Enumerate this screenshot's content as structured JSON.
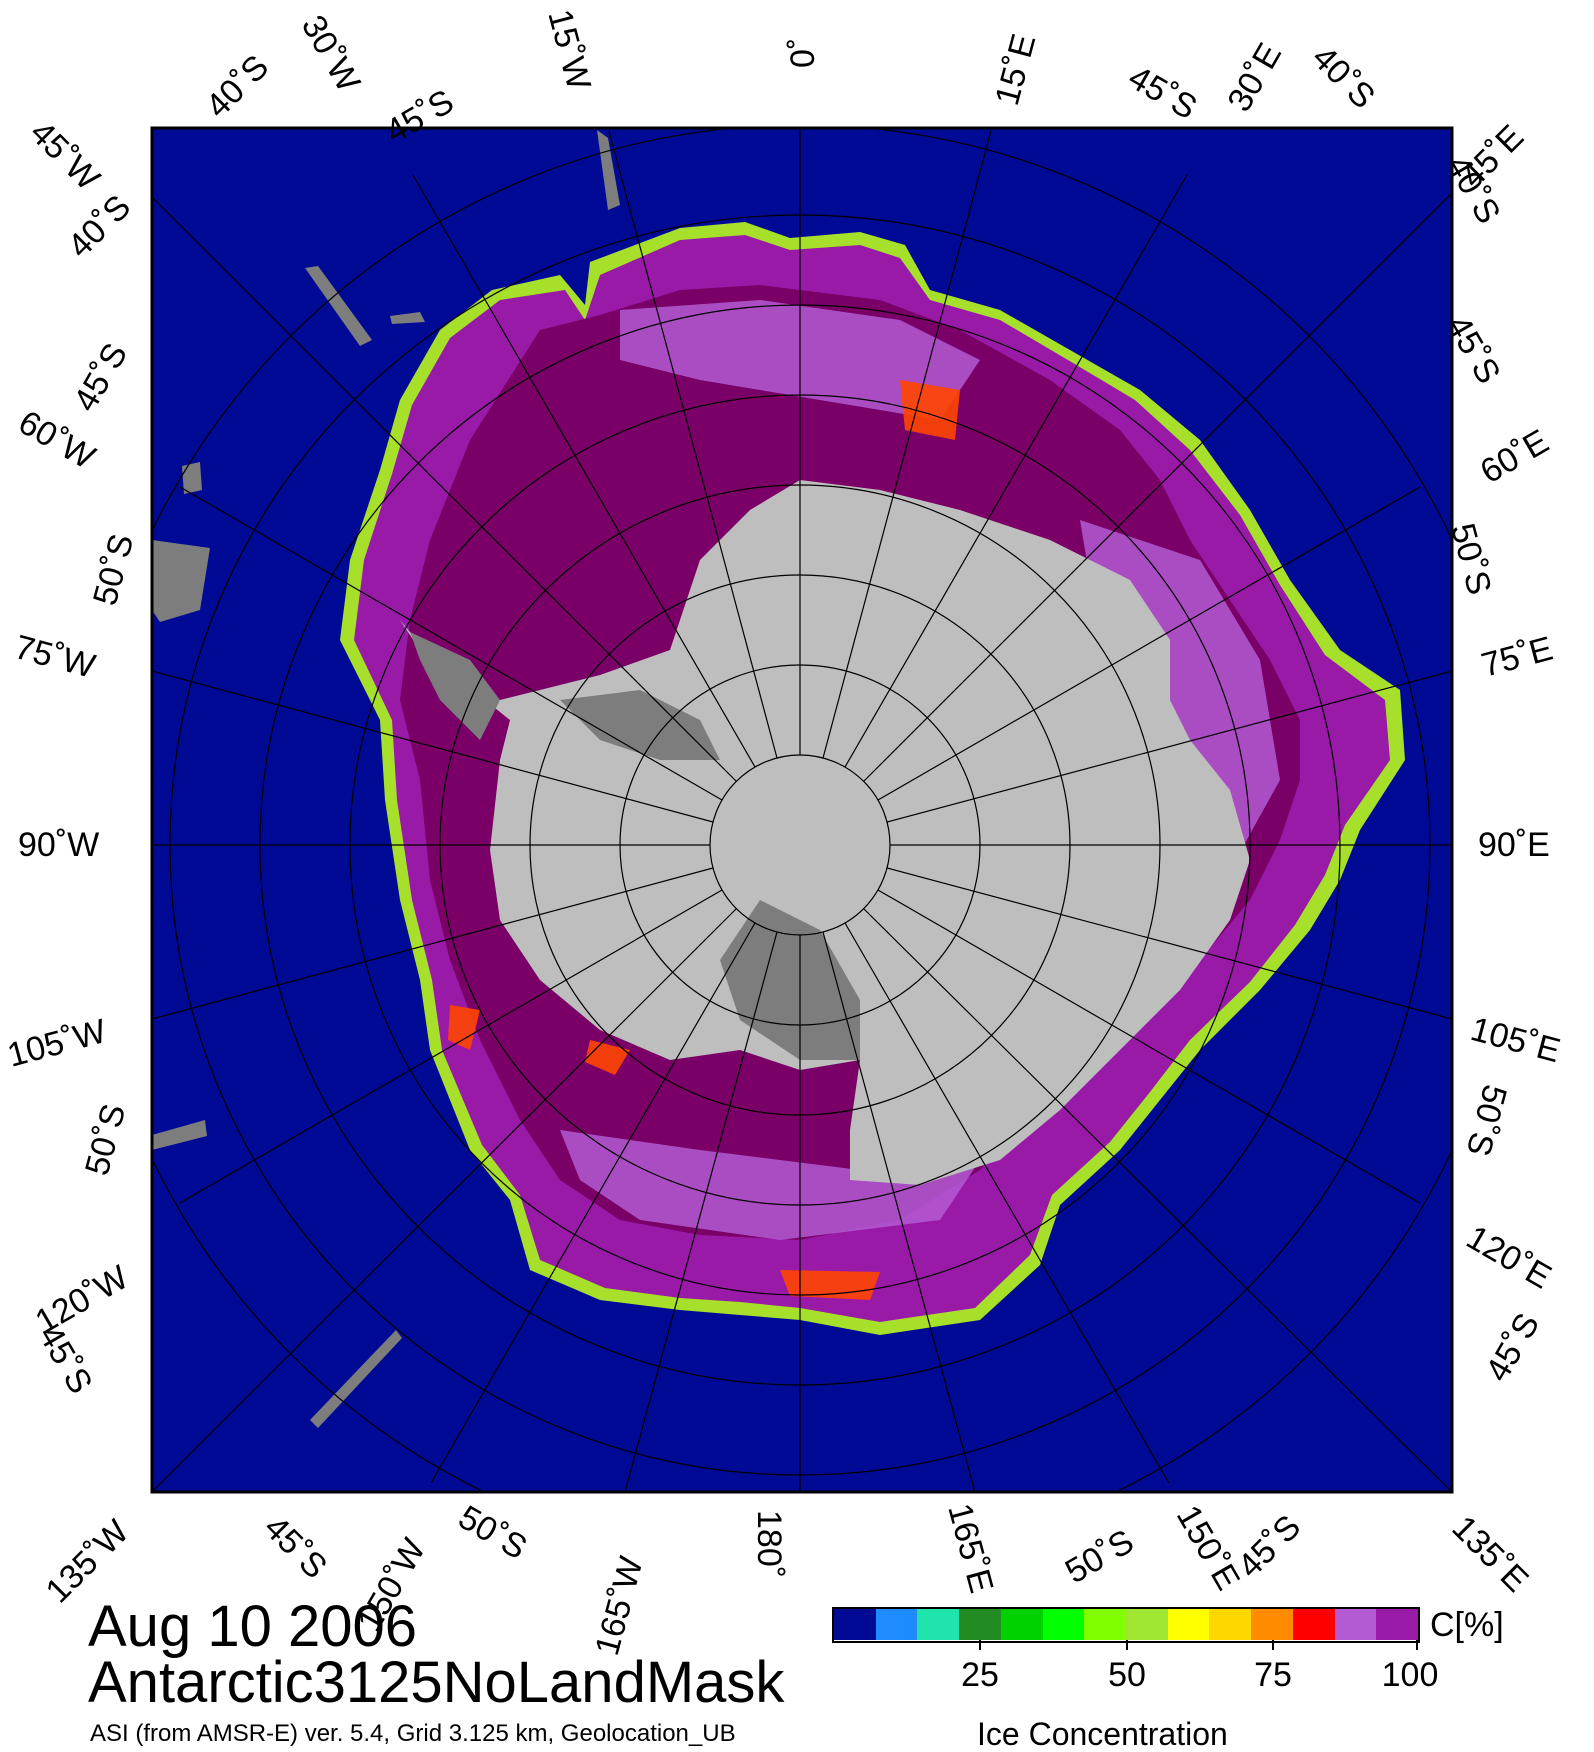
{
  "map": {
    "projection": "polar-stereographic-south",
    "colors": {
      "ocean": "#000a94",
      "land": "#bebebe",
      "ice_shelf": "#7d7d7d",
      "ice_100": "#7a0068",
      "ice_high": "#9a1aa8",
      "ice_light": "#b45ad2"
    },
    "top_labels": [
      "45˚W",
      "40˚S",
      "30˚W",
      "45˚S",
      "15˚W",
      "0˚",
      "15˚E",
      "45˚S",
      "30˚E",
      "40˚S",
      "45˚E"
    ],
    "left_labels": [
      "40˚S",
      "45˚S",
      "60˚W",
      "50˚S",
      "75˚W",
      "90˚W",
      "105˚W",
      "50˚S",
      "120˚W",
      "45˚S"
    ],
    "right_labels": [
      "40˚S",
      "45˚S",
      "60˚E",
      "50˚S",
      "75˚E",
      "90˚E",
      "105˚E",
      "50˚S",
      "120˚E",
      "45˚S"
    ],
    "bottom_labels": [
      "135˚W",
      "45˚S",
      "150˚W",
      "50˚S",
      "165˚W",
      "180˚",
      "165˚E",
      "50˚S",
      "150˚E",
      "45˚S",
      "135˚E"
    ]
  },
  "info": {
    "date": "Aug 10 2006",
    "grid_name": "Antarctic3125NoLandMask",
    "source": "ASI (from AMSR-E) ver. 5.4,  Grid 3.125 km, Geolocation_UB"
  },
  "legend": {
    "title": "Ice Concentration",
    "unit": "C[%]",
    "tick_labels": [
      "25",
      "50",
      "75",
      "100"
    ],
    "tick_values": [
      25,
      50,
      75,
      100
    ],
    "range": [
      0,
      100
    ],
    "colors": [
      "#000a94",
      "#1e8cff",
      "#1ee6aa",
      "#228b22",
      "#00d200",
      "#00ff00",
      "#7fff00",
      "#a0e632",
      "#ffff00",
      "#ffd700",
      "#ff8c00",
      "#ff0000",
      "#b45ad2",
      "#9a1aa8"
    ]
  }
}
